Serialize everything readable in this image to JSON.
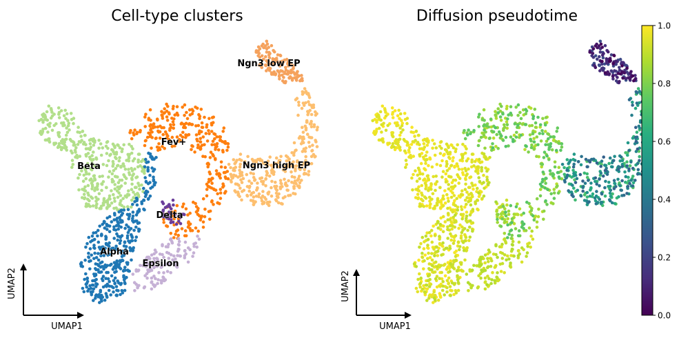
{
  "figure": {
    "panels": [
      {
        "title": "Cell-type clusters",
        "xlabel": "UMAP1",
        "ylabel": "UMAP2"
      },
      {
        "title": "Diffusion pseudotime",
        "xlabel": "UMAP1",
        "ylabel": "UMAP2"
      }
    ],
    "colorbar": {
      "ticks": [
        "0.0",
        "0.2",
        "0.4",
        "0.6",
        "0.8",
        "1.0"
      ],
      "colormap": "viridis"
    }
  },
  "chart_data": [
    {
      "type": "scatter",
      "title": "Cell-type clusters",
      "xlabel": "UMAP1",
      "ylabel": "UMAP2",
      "axes_visible": false,
      "grid": false,
      "legend": "on-data labels",
      "series": [
        {
          "name": "Ngn3 low EP",
          "color": "#f5a25d"
        },
        {
          "name": "Ngn3 high EP",
          "color": "#fdbf6f"
        },
        {
          "name": "Fev+",
          "color": "#ff7f0e"
        },
        {
          "name": "Beta",
          "color": "#b2df8a"
        },
        {
          "name": "Alpha",
          "color": "#1f77b4"
        },
        {
          "name": "Delta",
          "color": "#6a3d9a"
        },
        {
          "name": "Epsilon",
          "color": "#c5b0d5"
        }
      ]
    },
    {
      "type": "scatter",
      "title": "Diffusion pseudotime",
      "xlabel": "UMAP1",
      "ylabel": "UMAP2",
      "axes_visible": false,
      "grid": false,
      "color_scale": {
        "colormap": "viridis",
        "min": 0.0,
        "max": 1.0
      },
      "pseudotime_by_cluster": [
        {
          "name": "Ngn3 low EP",
          "value": 0.08
        },
        {
          "name": "Ngn3 high EP",
          "value": 0.55
        },
        {
          "name": "Fev+",
          "value": 0.82
        },
        {
          "name": "Beta",
          "value": 0.98
        },
        {
          "name": "Alpha",
          "value": 0.95
        },
        {
          "name": "Delta",
          "value": 0.9
        },
        {
          "name": "Epsilon",
          "value": 0.92
        }
      ]
    }
  ]
}
